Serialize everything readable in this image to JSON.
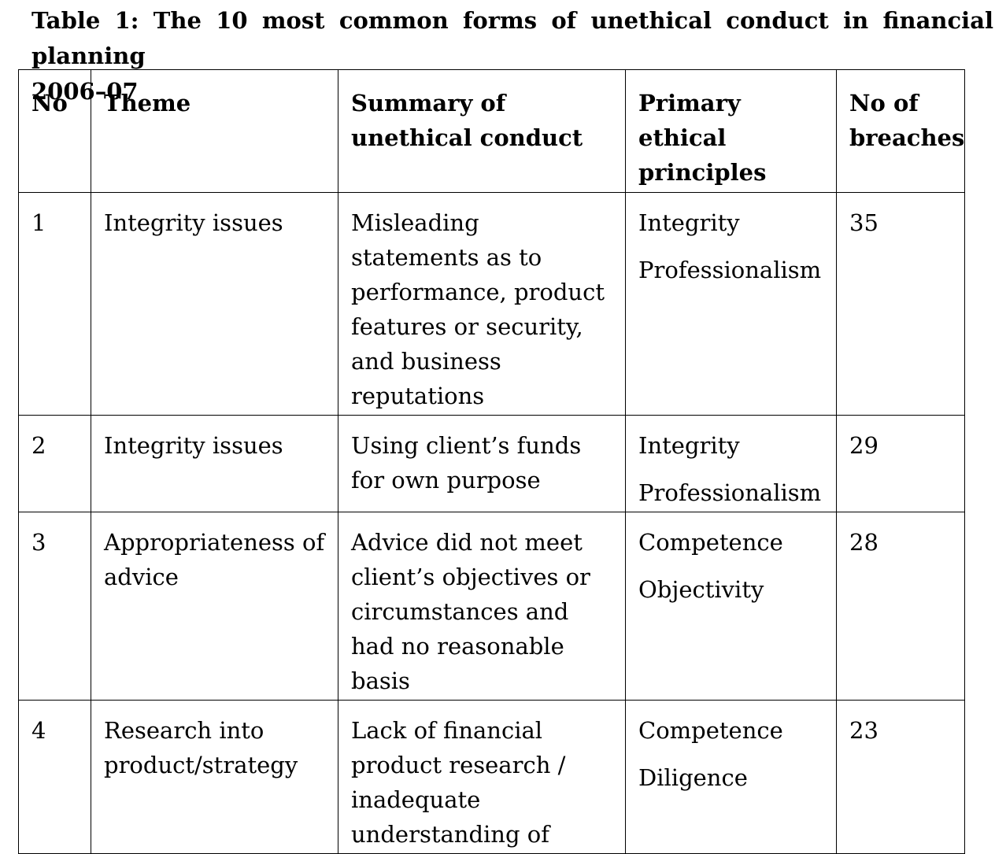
{
  "caption": {
    "line1": "Table 1: The 10 most common forms of unethical conduct in financial planning",
    "line2": "2006–07"
  },
  "table": {
    "headers": {
      "no": "No",
      "theme": "Theme",
      "summary": "Summary of unethical conduct",
      "principles": "Primary ethical principles",
      "breaches": "No of breaches"
    },
    "rows": [
      {
        "no": "1",
        "theme": "Integrity issues",
        "summary": "Misleading statements as to performance, product features or security, and business reputations",
        "principles": [
          "Integrity",
          "Professionalism"
        ],
        "breaches": "35"
      },
      {
        "no": "2",
        "theme": "Integrity issues",
        "summary": "Using client’s funds for own purpose",
        "principles": [
          "Integrity",
          "Professionalism"
        ],
        "breaches": "29"
      },
      {
        "no": "3",
        "theme": "Appropriateness of advice",
        "summary": "Advice did not meet client’s objectives or circumstances and had no reasonable basis",
        "principles": [
          "Competence",
          "Objectivity"
        ],
        "breaches": "28"
      },
      {
        "no": "4",
        "theme": "Research into product/strategy",
        "summary": "Lack of financial product research / inadequate understanding of",
        "principles": [
          "Competence",
          "Diligence"
        ],
        "breaches": "23"
      }
    ]
  }
}
